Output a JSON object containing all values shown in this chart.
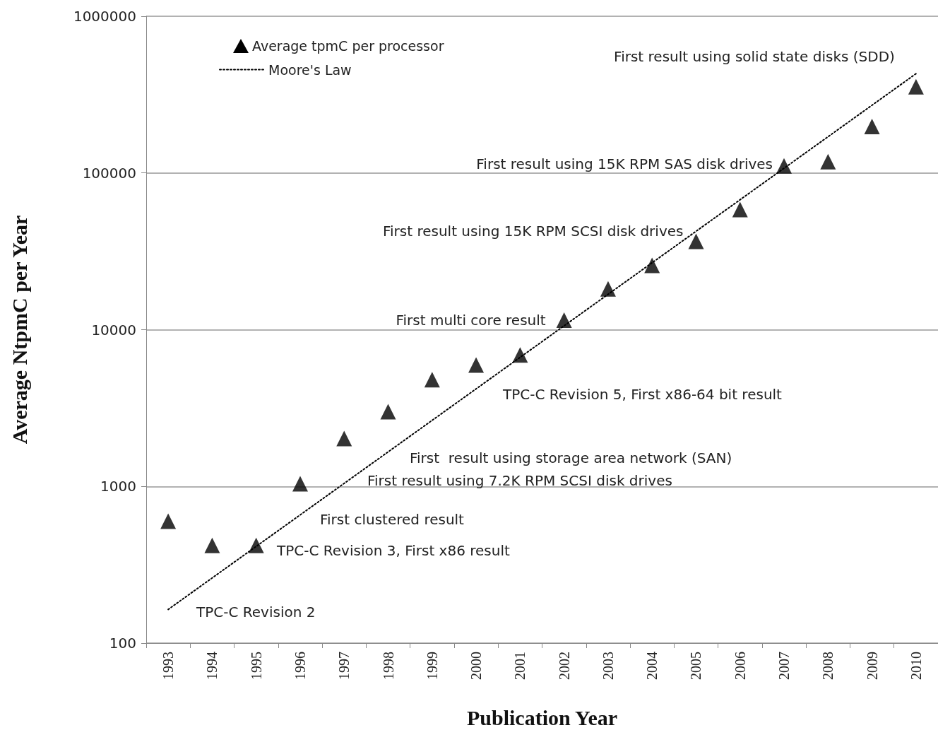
{
  "chart_data": {
    "type": "scatter",
    "xlabel": "Publication Year",
    "ylabel": "Average NtpmC per Year",
    "categories": [
      "1993",
      "1994",
      "1995",
      "1996",
      "1997",
      "1998",
      "1999",
      "2000",
      "2001",
      "2002",
      "2003",
      "2004",
      "2005",
      "2006",
      "2007",
      "2008",
      "2009",
      "2010"
    ],
    "series": [
      {
        "name": "Average tpmC per processor",
        "color": "#000000",
        "marker": "triangle",
        "values": [
          600,
          420,
          420,
          1040,
          2020,
          3000,
          4800,
          5950,
          6900,
          11500,
          18200,
          25700,
          36600,
          58400,
          111000,
          118000,
          198000,
          355000
        ]
      },
      {
        "name": "Moore's Law",
        "type": "line",
        "color": "#000000",
        "marker": "none",
        "line_style": "dotted",
        "values": [
          164,
          null,
          null,
          null,
          null,
          null,
          null,
          null,
          null,
          null,
          null,
          null,
          null,
          null,
          null,
          null,
          null,
          430000
        ]
      }
    ],
    "log": "y",
    "ylim": [
      100,
      1000000
    ],
    "yticks": [
      100,
      1000,
      10000,
      100000,
      1000000
    ],
    "grid": "y",
    "legend": "top left",
    "annotations": [
      "TPC-C Revision 2",
      "TPC-C Revision 3, First x86 result",
      "First clustered result",
      "First result using 7.2K RPM SCSI disk drives",
      "First  result using storage area network (SAN)",
      "TPC-C Revision 5, First x86-64 bit result",
      {
        "text": "First multi core result",
        "x": "2002",
        "y": 11500
      },
      {
        "text": "First result using 15K RPM SCSI disk drives",
        "x": "2005",
        "y": 39000
      },
      {
        "text": "First result using 15K RPM SAS disk drives",
        "x": "2007",
        "y": 114000
      },
      {
        "text": "First result using solid state disks (SDD)",
        "x": "2010",
        "y": 440000
      }
    ]
  }
}
